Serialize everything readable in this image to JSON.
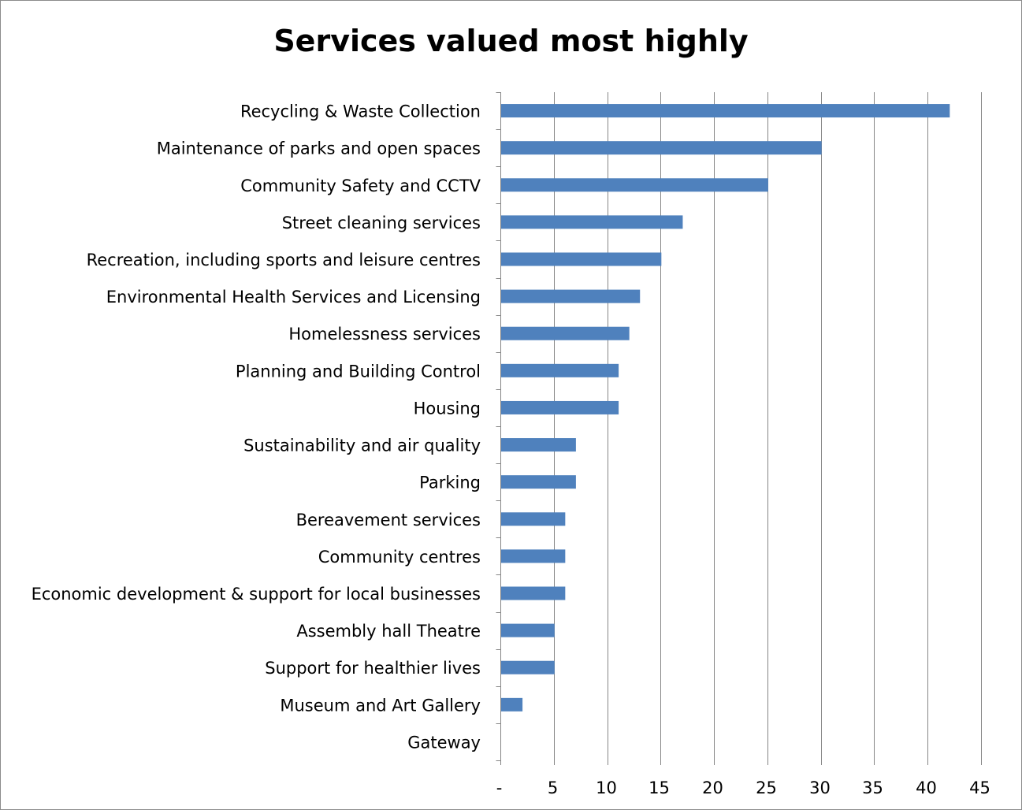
{
  "chart_data": {
    "type": "bar",
    "orientation": "horizontal",
    "title": "Services valued most highly",
    "xlabel": "",
    "ylabel": "",
    "categories": [
      "Recycling & Waste Collection",
      "Maintenance of parks and open spaces",
      "Community Safety and CCTV",
      "Street cleaning services",
      "Recreation, including sports and leisure centres",
      "Environmental Health Services and Licensing",
      "Homelessness services",
      "Planning and Building Control",
      "Housing",
      "Sustainability and air quality",
      "Parking",
      "Bereavement services",
      "Community centres",
      "Economic development & support for local businesses",
      "Assembly hall Theatre",
      "Support for healthier lives",
      "Museum and Art Gallery",
      "Gateway"
    ],
    "values": [
      42,
      30,
      25,
      17,
      15,
      13,
      12,
      11,
      11,
      7,
      7,
      6,
      6,
      6,
      5,
      5,
      2,
      0
    ],
    "xlim": [
      0,
      45
    ],
    "xticks": [
      0,
      5,
      10,
      15,
      20,
      25,
      30,
      35,
      40,
      45
    ],
    "xtick_labels": [
      "-",
      "5",
      "10",
      "15",
      "20",
      "25",
      "30",
      "35",
      "40",
      "45"
    ],
    "grid": "vertical",
    "legend": "none",
    "bar_color": "#4f81bd",
    "gridline_color": "#868686"
  }
}
